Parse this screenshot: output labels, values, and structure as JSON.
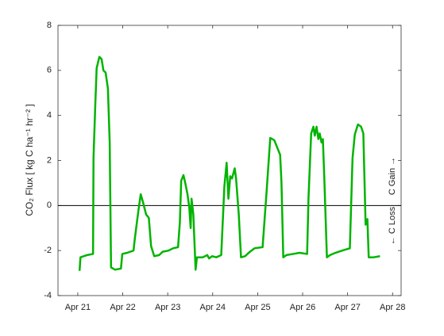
{
  "chart_data": {
    "type": "line",
    "ylabel": "CO₂ Flux [ kg C ha⁻¹ hr⁻² ]",
    "annotations": [
      "← C Loss",
      "C Gain →"
    ],
    "x": [
      21.04,
      21.06,
      21.21,
      21.34,
      21.35,
      21.39,
      21.42,
      21.48,
      21.53,
      21.57,
      21.62,
      21.67,
      21.71,
      21.74,
      21.83,
      21.96,
      21.99,
      22.1,
      22.24,
      22.27,
      22.35,
      22.4,
      22.45,
      22.52,
      22.58,
      22.63,
      22.7,
      22.81,
      22.89,
      23.02,
      23.12,
      23.23,
      23.27,
      23.3,
      23.35,
      23.39,
      23.44,
      23.48,
      23.51,
      23.53,
      23.57,
      23.62,
      23.65,
      23.78,
      23.88,
      23.92,
      23.99,
      24.08,
      24.19,
      24.26,
      24.31,
      24.35,
      24.39,
      24.43,
      24.49,
      24.52,
      24.58,
      24.63,
      24.72,
      24.83,
      24.93,
      25.11,
      25.2,
      25.28,
      25.37,
      25.43,
      25.5,
      25.53,
      25.57,
      25.64,
      25.79,
      25.93,
      26.1,
      26.13,
      26.19,
      26.24,
      26.27,
      26.31,
      26.35,
      26.38,
      26.42,
      26.45,
      26.48,
      26.54,
      26.61,
      26.73,
      26.88,
      27.05,
      27.11,
      27.16,
      27.23,
      27.3,
      27.35,
      27.39,
      27.4,
      27.44,
      27.47,
      27.58,
      27.72
    ],
    "series": [
      {
        "color": "#00b400",
        "values": [
          -2.9,
          -2.3,
          -2.2,
          -2.15,
          2.1,
          4.5,
          6.1,
          6.6,
          6.5,
          6.0,
          5.9,
          5.2,
          2.8,
          -2.75,
          -2.85,
          -2.8,
          -2.15,
          -2.1,
          -2.0,
          -1.45,
          -0.2,
          0.5,
          0.15,
          -0.4,
          -0.55,
          -1.8,
          -2.25,
          -2.2,
          -2.05,
          -2.0,
          -1.9,
          -1.85,
          -0.75,
          1.1,
          1.35,
          1.0,
          0.5,
          -0.1,
          -1.0,
          0.3,
          -0.4,
          -2.85,
          -2.3,
          -2.3,
          -2.2,
          -2.35,
          -2.25,
          -2.3,
          -2.2,
          0.85,
          1.9,
          0.3,
          1.3,
          1.2,
          1.65,
          1.2,
          -0.4,
          -2.3,
          -2.25,
          -2.05,
          -1.9,
          -1.85,
          0.65,
          3.0,
          2.9,
          2.6,
          2.25,
          1.0,
          -2.3,
          -2.2,
          -2.15,
          -2.1,
          -2.15,
          0.3,
          3.2,
          3.5,
          3.1,
          3.5,
          2.95,
          3.2,
          2.8,
          2.95,
          1.35,
          -2.3,
          -2.2,
          -2.1,
          -2.0,
          -1.9,
          2.1,
          3.15,
          3.6,
          3.5,
          3.2,
          0,
          -0.85,
          -0.6,
          -2.3,
          -2.3,
          -2.25
        ]
      }
    ],
    "xlim": [
      20.56,
      28.19
    ],
    "xticks": [
      {
        "value": 21,
        "label": "Apr 21"
      },
      {
        "value": 22,
        "label": "Apr 22"
      },
      {
        "value": 23,
        "label": "Apr 23"
      },
      {
        "value": 24,
        "label": "Apr 24"
      },
      {
        "value": 25,
        "label": "Apr 25"
      },
      {
        "value": 26,
        "label": "Apr 26"
      },
      {
        "value": 27,
        "label": "Apr 27"
      },
      {
        "value": 28,
        "label": "Apr 28"
      }
    ],
    "ylim": [
      -4,
      8
    ],
    "yticks": [
      -4,
      -2,
      0,
      2,
      4,
      6,
      8
    ],
    "zero_line": true
  }
}
